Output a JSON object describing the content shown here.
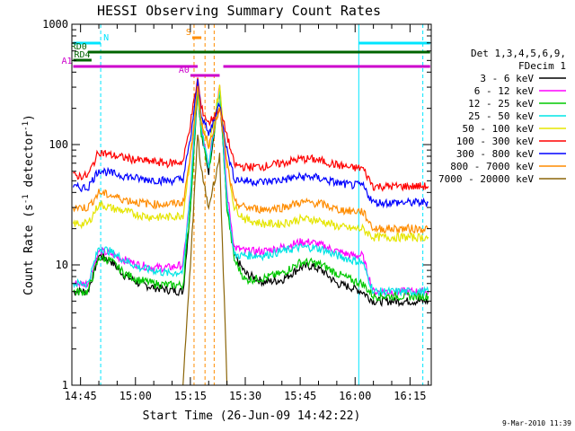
{
  "chart_data": {
    "type": "line",
    "title": "HESSI Observing Summary Count Rates",
    "xlabel": "Start Time (26-Jun-09 14:42:22)",
    "ylabel_main": "Count Rate (s",
    "ylabel_sup1": "-1",
    "ylabel_mid": " detector",
    "ylabel_sup2": "-1",
    "ylabel_end": ")",
    "yscale": "log",
    "ylim": [
      1,
      1000
    ],
    "xlim_minutes": [
      -2.37,
      95.8
    ],
    "x_ticks": [
      {
        "label": "14:45",
        "t": 0
      },
      {
        "label": "15:00",
        "t": 15
      },
      {
        "label": "15:15",
        "t": 30
      },
      {
        "label": "15:30",
        "t": 45
      },
      {
        "label": "15:45",
        "t": 60
      },
      {
        "label": "16:00",
        "t": 75
      },
      {
        "label": "16:15",
        "t": 90
      }
    ],
    "y_ticks": [
      {
        "label": "1",
        "v": 1
      },
      {
        "label": "10",
        "v": 10
      },
      {
        "label": "100",
        "v": 100
      },
      {
        "label": "1000",
        "v": 1000
      }
    ],
    "legend_title": [
      "Det 1,3,4,5,6,9,",
      "FDecim 1"
    ],
    "series": [
      {
        "name": "3 - 6 keV",
        "color": "#000000",
        "values": [
          [
            -2,
            6
          ],
          [
            2,
            6
          ],
          [
            5,
            12
          ],
          [
            8,
            11
          ],
          [
            12,
            8.2
          ],
          [
            16,
            7
          ],
          [
            20,
            6.5
          ],
          [
            24,
            6.2
          ],
          [
            28,
            6
          ],
          [
            30,
            30
          ],
          [
            32,
            300
          ],
          [
            33,
            120
          ],
          [
            35,
            60
          ],
          [
            38,
            280
          ],
          [
            40,
            30
          ],
          [
            42,
            12
          ],
          [
            45,
            8.5
          ],
          [
            50,
            7.2
          ],
          [
            55,
            7.5
          ],
          [
            60,
            9.5
          ],
          [
            63,
            9.8
          ],
          [
            66,
            9
          ],
          [
            70,
            7
          ],
          [
            74,
            6.5
          ],
          [
            77,
            6
          ],
          [
            80,
            5
          ],
          [
            95,
            5
          ]
        ]
      },
      {
        "name": "6 - 12 keV",
        "color": "#ff00ff",
        "values": [
          [
            -2,
            7
          ],
          [
            2,
            7
          ],
          [
            5,
            13
          ],
          [
            8,
            12.5
          ],
          [
            12,
            11
          ],
          [
            16,
            10
          ],
          [
            20,
            9.5
          ],
          [
            24,
            9.5
          ],
          [
            28,
            10
          ],
          [
            30,
            40
          ],
          [
            32,
            340
          ],
          [
            33,
            140
          ],
          [
            35,
            70
          ],
          [
            38,
            320
          ],
          [
            40,
            40
          ],
          [
            42,
            14
          ],
          [
            45,
            13
          ],
          [
            50,
            13
          ],
          [
            55,
            14
          ],
          [
            60,
            15.5
          ],
          [
            63,
            15.5
          ],
          [
            66,
            14.5
          ],
          [
            70,
            13
          ],
          [
            74,
            12
          ],
          [
            77,
            12
          ],
          [
            80,
            6
          ],
          [
            95,
            6
          ]
        ]
      },
      {
        "name": "12 - 25 keV",
        "color": "#00c800",
        "values": [
          [
            -2,
            6
          ],
          [
            2,
            6
          ],
          [
            5,
            11.5
          ],
          [
            8,
            11
          ],
          [
            12,
            8.5
          ],
          [
            16,
            7.5
          ],
          [
            20,
            7
          ],
          [
            24,
            6.8
          ],
          [
            28,
            6.8
          ],
          [
            30,
            30
          ],
          [
            32,
            300
          ],
          [
            33,
            120
          ],
          [
            35,
            60
          ],
          [
            38,
            280
          ],
          [
            40,
            30
          ],
          [
            42,
            11
          ],
          [
            45,
            7.5
          ],
          [
            50,
            7.8
          ],
          [
            55,
            8.5
          ],
          [
            60,
            10.5
          ],
          [
            63,
            10.5
          ],
          [
            66,
            10
          ],
          [
            70,
            8.5
          ],
          [
            74,
            7.5
          ],
          [
            77,
            7
          ],
          [
            80,
            5.5
          ],
          [
            95,
            5.5
          ]
        ]
      },
      {
        "name": "25 - 50 keV",
        "color": "#00e5e5",
        "values": [
          [
            -2,
            7
          ],
          [
            2,
            7
          ],
          [
            5,
            14
          ],
          [
            8,
            13
          ],
          [
            12,
            11
          ],
          [
            16,
            9.5
          ],
          [
            20,
            9
          ],
          [
            24,
            8.5
          ],
          [
            28,
            8.8
          ],
          [
            30,
            40
          ],
          [
            32,
            320
          ],
          [
            33,
            130
          ],
          [
            35,
            65
          ],
          [
            38,
            300
          ],
          [
            40,
            35
          ],
          [
            42,
            12
          ],
          [
            45,
            12
          ],
          [
            50,
            12
          ],
          [
            55,
            13
          ],
          [
            60,
            14
          ],
          [
            63,
            14
          ],
          [
            66,
            13.5
          ],
          [
            70,
            12
          ],
          [
            74,
            11
          ],
          [
            77,
            10.5
          ],
          [
            80,
            6
          ],
          [
            95,
            6
          ]
        ]
      },
      {
        "name": "50 - 100 keV",
        "color": "#e5e500",
        "values": [
          [
            -2,
            22
          ],
          [
            2,
            22
          ],
          [
            5,
            32
          ],
          [
            8,
            30
          ],
          [
            12,
            28
          ],
          [
            16,
            26
          ],
          [
            20,
            25
          ],
          [
            24,
            25
          ],
          [
            28,
            26
          ],
          [
            30,
            80
          ],
          [
            32,
            300
          ],
          [
            33,
            150
          ],
          [
            35,
            90
          ],
          [
            38,
            300
          ],
          [
            40,
            70
          ],
          [
            42,
            30
          ],
          [
            45,
            24
          ],
          [
            50,
            22
          ],
          [
            55,
            22
          ],
          [
            60,
            24
          ],
          [
            63,
            24
          ],
          [
            66,
            23
          ],
          [
            70,
            21
          ],
          [
            74,
            20
          ],
          [
            77,
            20
          ],
          [
            80,
            17
          ],
          [
            95,
            17
          ]
        ]
      },
      {
        "name": "100 - 300 keV",
        "color": "#ff0000",
        "values": [
          [
            -2,
            55
          ],
          [
            2,
            55
          ],
          [
            5,
            88
          ],
          [
            8,
            82
          ],
          [
            12,
            78
          ],
          [
            16,
            74
          ],
          [
            20,
            72
          ],
          [
            24,
            70
          ],
          [
            28,
            72
          ],
          [
            30,
            150
          ],
          [
            32,
            350
          ],
          [
            33,
            200
          ],
          [
            35,
            150
          ],
          [
            38,
            200
          ],
          [
            40,
            120
          ],
          [
            42,
            68
          ],
          [
            45,
            65
          ],
          [
            50,
            66
          ],
          [
            55,
            70
          ],
          [
            60,
            76
          ],
          [
            63,
            76
          ],
          [
            66,
            73
          ],
          [
            70,
            68
          ],
          [
            74,
            64
          ],
          [
            77,
            64
          ],
          [
            80,
            45
          ],
          [
            95,
            45
          ]
        ]
      },
      {
        "name": "300 - 800 keV",
        "color": "#0000ff",
        "values": [
          [
            -2,
            44
          ],
          [
            2,
            44
          ],
          [
            5,
            62
          ],
          [
            8,
            58
          ],
          [
            12,
            55
          ],
          [
            16,
            52
          ],
          [
            20,
            51
          ],
          [
            24,
            50
          ],
          [
            28,
            52
          ],
          [
            30,
            110
          ],
          [
            32,
            330
          ],
          [
            33,
            180
          ],
          [
            35,
            120
          ],
          [
            38,
            220
          ],
          [
            40,
            90
          ],
          [
            42,
            52
          ],
          [
            45,
            50
          ],
          [
            50,
            49
          ],
          [
            55,
            51
          ],
          [
            60,
            54
          ],
          [
            63,
            54
          ],
          [
            66,
            52
          ],
          [
            70,
            48
          ],
          [
            74,
            46
          ],
          [
            77,
            46
          ],
          [
            80,
            33
          ],
          [
            95,
            33
          ]
        ]
      },
      {
        "name": "800 - 7000 keV",
        "color": "#ff8c00",
        "values": [
          [
            -2,
            30
          ],
          [
            2,
            30
          ],
          [
            5,
            40
          ],
          [
            8,
            38
          ],
          [
            12,
            35
          ],
          [
            16,
            33
          ],
          [
            20,
            32
          ],
          [
            24,
            32
          ],
          [
            28,
            33
          ],
          [
            30,
            80
          ],
          [
            32,
            290
          ],
          [
            33,
            150
          ],
          [
            35,
            100
          ],
          [
            38,
            200
          ],
          [
            40,
            70
          ],
          [
            42,
            33
          ],
          [
            45,
            30
          ],
          [
            50,
            29
          ],
          [
            55,
            30
          ],
          [
            60,
            33
          ],
          [
            63,
            33
          ],
          [
            66,
            32
          ],
          [
            70,
            29
          ],
          [
            74,
            28
          ],
          [
            77,
            28
          ],
          [
            80,
            20
          ],
          [
            95,
            20
          ]
        ]
      },
      {
        "name": "7000 - 20000 keV",
        "color": "#8b6508",
        "values": [
          [
            28,
            1
          ],
          [
            30,
            10
          ],
          [
            32,
            120
          ],
          [
            33,
            60
          ],
          [
            35,
            30
          ],
          [
            38,
            80
          ],
          [
            40,
            1
          ]
        ]
      }
    ],
    "annotation_bars": [
      {
        "label": "N",
        "color": "#00e5ff",
        "segments": [
          [
            -2,
            5.5
          ],
          [
            76,
            95.5
          ]
        ]
      },
      {
        "label": "RD0",
        "color": "#006400",
        "segments": [
          [
            2,
            95.5
          ]
        ]
      },
      {
        "label": "RD4",
        "color": "#006400",
        "segments": [
          [
            -2,
            3
          ]
        ]
      },
      {
        "label": "S",
        "color": "#ff8c00",
        "segments": [
          [
            30.5,
            33
          ]
        ]
      },
      {
        "label": "A0",
        "color": "#cc00cc",
        "segments": [
          [
            30,
            38
          ]
        ]
      },
      {
        "label": "A1",
        "color": "#cc00cc",
        "segments": [
          [
            -2,
            32
          ],
          [
            39,
            95.5
          ]
        ]
      }
    ],
    "timestamp": "9-Mar-2010 11:39"
  }
}
